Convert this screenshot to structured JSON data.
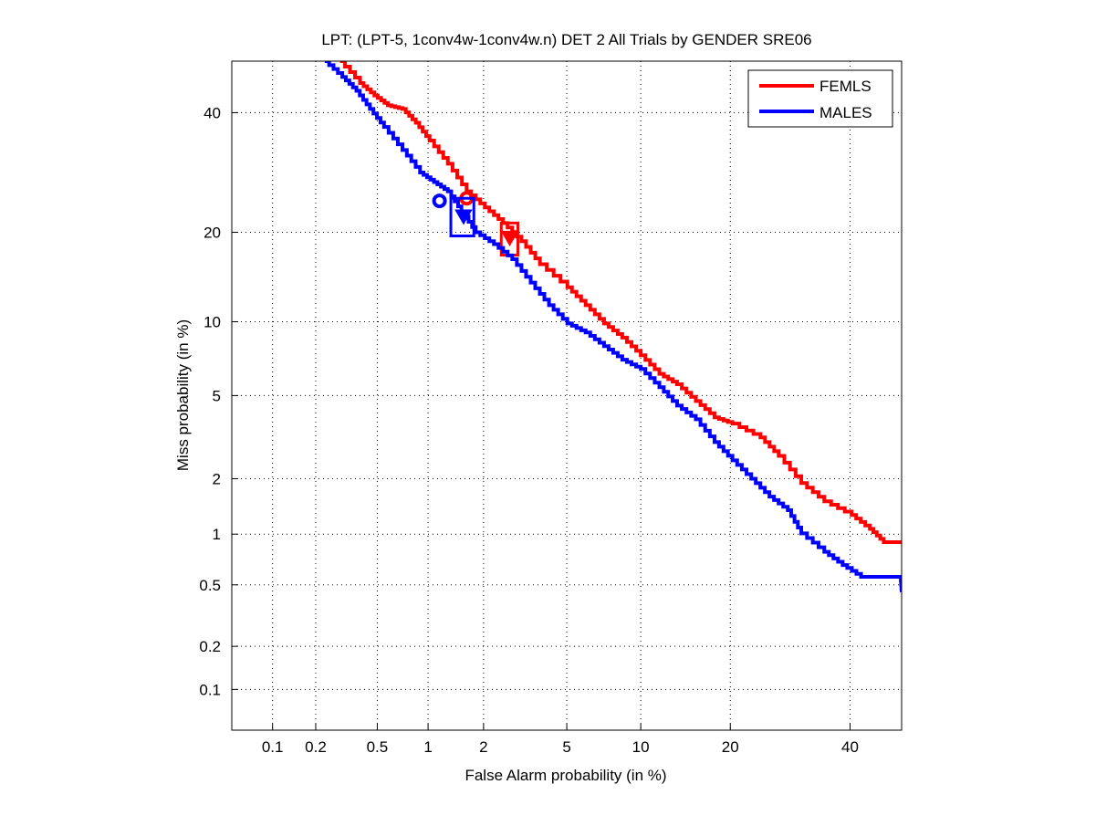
{
  "chart_data": {
    "type": "line",
    "scale": "normal-deviate (DET)",
    "title": "LPT: (LPT-5, 1conv4w-1conv4w.n) DET 2 All Trials by GENDER SRE06",
    "xlabel": "False Alarm probability (in %)",
    "ylabel": "Miss probability (in %)",
    "xlim": [
      0.05,
      50
    ],
    "ylim": [
      0.05,
      50
    ],
    "xticks": [
      0.1,
      0.2,
      0.5,
      1,
      2,
      5,
      10,
      20,
      40
    ],
    "xtick_labels": [
      "0.1",
      "0.2",
      "0.5",
      "1",
      "2",
      "5",
      "10",
      "20",
      "40"
    ],
    "yticks": [
      0.1,
      0.2,
      0.5,
      1,
      2,
      5,
      10,
      20,
      40
    ],
    "ytick_labels": [
      "0.1",
      "0.2",
      "0.5",
      "1",
      "2",
      "5",
      "10",
      "20",
      "40"
    ],
    "grid": true,
    "legend_position": "top-right",
    "series": [
      {
        "name": "FEMLS",
        "color": "#ff0000",
        "points": [
          [
            0.29,
            50
          ],
          [
            0.39,
            45.7
          ],
          [
            0.48,
            43.3
          ],
          [
            0.58,
            41.4
          ],
          [
            0.71,
            40.7
          ],
          [
            0.85,
            38.1
          ],
          [
            1.02,
            34.8
          ],
          [
            1.29,
            30.7
          ],
          [
            1.63,
            26.1
          ],
          [
            2.03,
            23.6
          ],
          [
            2.51,
            21.3
          ],
          [
            3.09,
            18.8
          ],
          [
            3.78,
            15.9
          ],
          [
            5.03,
            13.3
          ],
          [
            6.03,
            11.5
          ],
          [
            7.19,
            9.85
          ],
          [
            8.5,
            8.7
          ],
          [
            10.0,
            7.4
          ],
          [
            11.7,
            6.2
          ],
          [
            13.5,
            5.6
          ],
          [
            15.6,
            4.73
          ],
          [
            17.9,
            3.99
          ],
          [
            20.3,
            3.73
          ],
          [
            24.4,
            3.21
          ],
          [
            27.3,
            2.61
          ],
          [
            31.1,
            1.9
          ],
          [
            35.2,
            1.52
          ],
          [
            40.3,
            1.28
          ],
          [
            43.8,
            1.07
          ],
          [
            46.5,
            0.9
          ],
          [
            50,
            0.9
          ]
        ],
        "min_dcf_point": [
          1.63,
          25.0
        ],
        "actual_dcf_point": [
          2.71,
          19.2
        ],
        "confidence_box": {
          "x": [
            2.46,
            2.97
          ],
          "y": [
            17.0,
            21.3
          ]
        }
      },
      {
        "name": "MALES",
        "color": "#0000ff",
        "points": [
          [
            0.23,
            50
          ],
          [
            0.3,
            46.9
          ],
          [
            0.37,
            44.2
          ],
          [
            0.45,
            40.7
          ],
          [
            0.55,
            37.3
          ],
          [
            0.71,
            33.1
          ],
          [
            0.9,
            29.2
          ],
          [
            1.08,
            27.6
          ],
          [
            1.29,
            26.1
          ],
          [
            1.53,
            23.0
          ],
          [
            1.82,
            20.0
          ],
          [
            2.26,
            18.4
          ],
          [
            2.79,
            16.5
          ],
          [
            3.42,
            13.8
          ],
          [
            4.16,
            11.5
          ],
          [
            5.03,
            9.85
          ],
          [
            6.03,
            9.1
          ],
          [
            7.19,
            8.05
          ],
          [
            8.5,
            7.1
          ],
          [
            10.0,
            6.5
          ],
          [
            11.7,
            5.44
          ],
          [
            13.5,
            4.51
          ],
          [
            15.6,
            3.91
          ],
          [
            17.9,
            3.05
          ],
          [
            20.3,
            2.48
          ],
          [
            23.0,
            2.0
          ],
          [
            25.8,
            1.61
          ],
          [
            28.8,
            1.36
          ],
          [
            31.1,
            1.01
          ],
          [
            35.2,
            0.79
          ],
          [
            38.6,
            0.66
          ],
          [
            42.1,
            0.56
          ],
          [
            49.8,
            0.56
          ],
          [
            50,
            0.45
          ]
        ],
        "min_dcf_point": [
          1.16,
          24.6
        ],
        "actual_dcf_point": [
          1.57,
          22.2
        ],
        "confidence_box": {
          "x": [
            1.34,
            1.78
          ],
          "y": [
            19.5,
            25.0
          ]
        }
      }
    ]
  }
}
